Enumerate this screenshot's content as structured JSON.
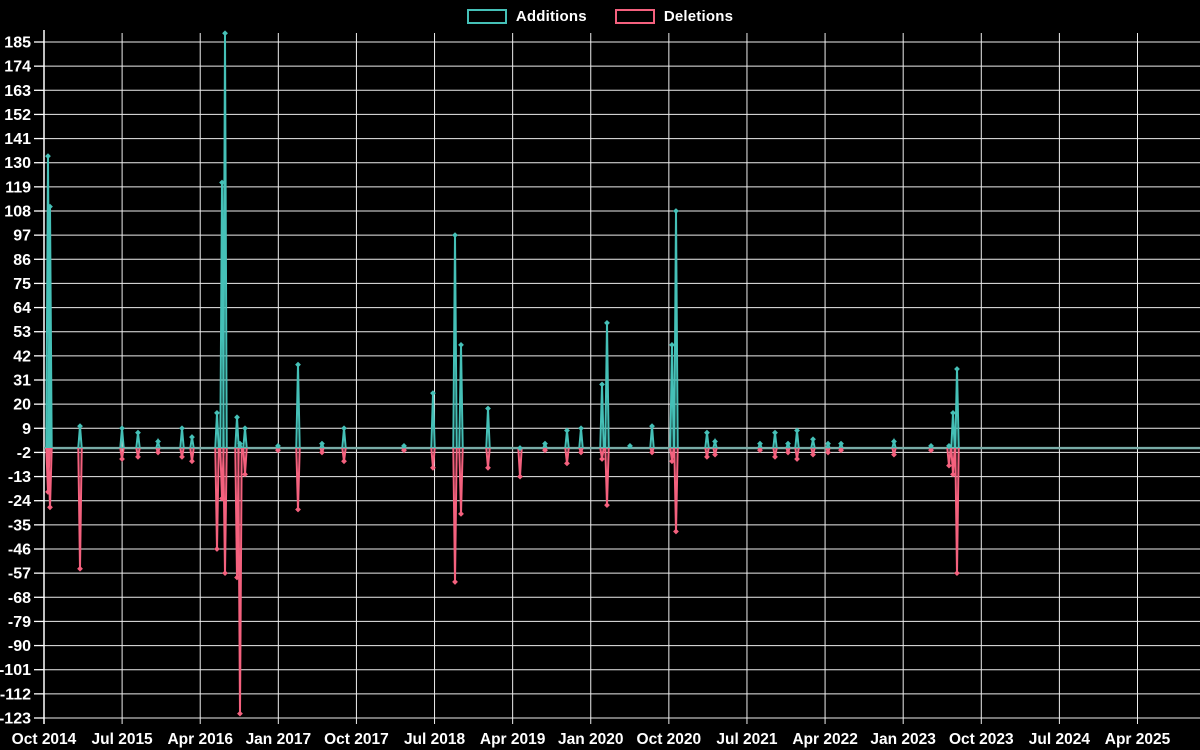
{
  "legend": {
    "items": [
      {
        "label": "Additions",
        "color": "#45c0b7"
      },
      {
        "label": "Deletions",
        "color": "#f4617e"
      }
    ]
  },
  "chart_data": {
    "type": "line",
    "title": "",
    "xlabel": "",
    "ylabel": "",
    "legend_position": "top-center",
    "grid": true,
    "background": "#000000",
    "colors": {
      "grid": "#ededed",
      "axis": "#ffffff",
      "text": "#ffffff",
      "additions": "#45c0b7",
      "deletions": "#f4617e",
      "baseline": "#79aca7"
    },
    "x_ticks": [
      "Oct 2014",
      "Jul 2015",
      "Apr 2016",
      "Jan 2017",
      "Oct 2017",
      "Jul 2018",
      "Apr 2019",
      "Jan 2020",
      "Oct 2020",
      "Jul 2021",
      "Apr 2022",
      "Jan 2023",
      "Oct 2023",
      "Jul 2024",
      "Apr 2025"
    ],
    "months_per_tick": 9,
    "y_ticks": [
      185,
      174,
      163,
      152,
      141,
      130,
      119,
      108,
      97,
      86,
      75,
      64,
      53,
      42,
      31,
      20,
      9,
      -2,
      -13,
      -24,
      -35,
      -46,
      -57,
      -68,
      -79,
      -90,
      -101,
      -112,
      -123
    ],
    "ylim": [
      -123,
      185
    ],
    "series_names": [
      "Additions",
      "Deletions"
    ],
    "baseline_value": 0,
    "end_month": 133.2,
    "events": [
      {
        "m": 0.46,
        "add": 133,
        "del": -20
      },
      {
        "m": 0.69,
        "add": 110,
        "del": -27
      },
      {
        "m": 4.15,
        "add": 10,
        "del": -55
      },
      {
        "m": 8.99,
        "add": 9,
        "del": -5
      },
      {
        "m": 10.83,
        "add": 7,
        "del": -4
      },
      {
        "m": 13.14,
        "add": 3,
        "del": -2
      },
      {
        "m": 15.9,
        "add": 9,
        "del": -4
      },
      {
        "m": 17.05,
        "add": 5,
        "del": -6
      },
      {
        "m": 19.93,
        "add": 16,
        "del": -46
      },
      {
        "m": 20.51,
        "add": 121,
        "del": -23
      },
      {
        "m": 20.86,
        "add": 189,
        "del": -57
      },
      {
        "m": 22.24,
        "add": 14,
        "del": -59
      },
      {
        "m": 22.58,
        "add": 2,
        "del": -121
      },
      {
        "m": 23.16,
        "add": 9,
        "del": -12
      },
      {
        "m": 26.96,
        "add": 1,
        "del": -1
      },
      {
        "m": 29.27,
        "add": 38,
        "del": -28
      },
      {
        "m": 32.03,
        "add": 2,
        "del": -2
      },
      {
        "m": 34.57,
        "add": 9,
        "del": -6
      },
      {
        "m": 41.48,
        "add": 1,
        "del": -1
      },
      {
        "m": 44.82,
        "add": 25,
        "del": -9
      },
      {
        "m": 47.36,
        "add": 97,
        "del": -61
      },
      {
        "m": 48.05,
        "add": 47,
        "del": -30
      },
      {
        "m": 51.16,
        "add": 18,
        "del": -9
      },
      {
        "m": 54.85,
        "add": 0,
        "del": -13
      },
      {
        "m": 57.73,
        "add": 2,
        "del": -1
      },
      {
        "m": 60.26,
        "add": 8,
        "del": -7
      },
      {
        "m": 61.88,
        "add": 9,
        "del": -2
      },
      {
        "m": 64.3,
        "add": 29,
        "del": -5
      },
      {
        "m": 64.87,
        "add": 57,
        "del": -26
      },
      {
        "m": 67.52,
        "add": 1,
        "del": 0
      },
      {
        "m": 70.06,
        "add": 10,
        "del": -2
      },
      {
        "m": 72.36,
        "add": 47,
        "del": -6
      },
      {
        "m": 72.82,
        "add": 108,
        "del": -38
      },
      {
        "m": 76.39,
        "add": 7,
        "del": -4
      },
      {
        "m": 77.32,
        "add": 3,
        "del": -3
      },
      {
        "m": 82.5,
        "add": 2,
        "del": -1
      },
      {
        "m": 84.23,
        "add": 7,
        "del": -4
      },
      {
        "m": 85.73,
        "add": 2,
        "del": -2
      },
      {
        "m": 86.77,
        "add": 8,
        "del": -5
      },
      {
        "m": 88.61,
        "add": 4,
        "del": -3
      },
      {
        "m": 90.34,
        "add": 2,
        "del": -2
      },
      {
        "m": 91.84,
        "add": 2,
        "del": -1
      },
      {
        "m": 97.94,
        "add": 3,
        "del": -3
      },
      {
        "m": 102.21,
        "add": 1,
        "del": -1
      },
      {
        "m": 104.28,
        "add": 1,
        "del": -8
      },
      {
        "m": 104.74,
        "add": 16,
        "del": -12
      },
      {
        "m": 105.2,
        "add": 36,
        "del": -57
      }
    ]
  }
}
